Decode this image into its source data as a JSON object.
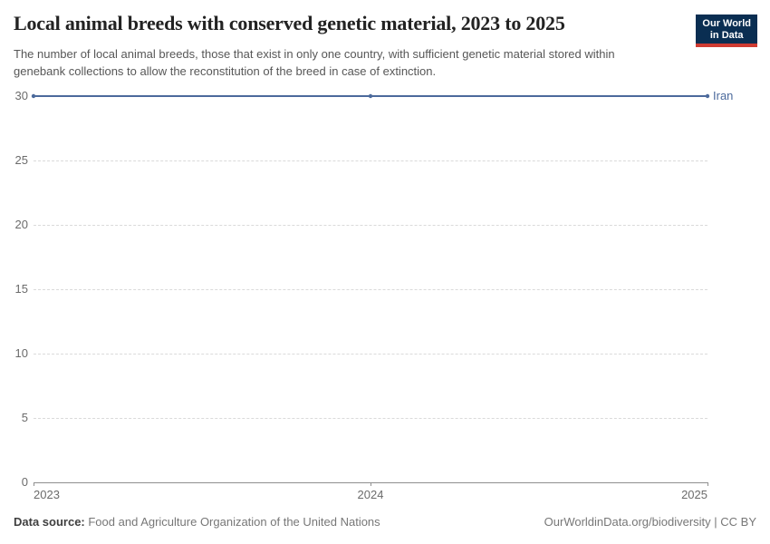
{
  "header": {
    "title": "Local animal breeds with conserved genetic material, 2023 to 2025",
    "subtitle": "The number of local animal breeds, those that exist in only one country, with sufficient genetic material stored within genebank collections to allow the reconstitution of the breed in case of extinction.",
    "logo": {
      "line1": "Our World",
      "line2": "in Data",
      "bg_color": "#0a2e52",
      "accent_color": "#cf3b32"
    }
  },
  "chart_data": {
    "type": "line",
    "title": "Local animal breeds with conserved genetic material, 2023 to 2025",
    "x": [
      2023,
      2024,
      2025
    ],
    "series": [
      {
        "name": "Iran",
        "values": [
          30,
          30,
          30
        ],
        "color": "#4c6a9c"
      }
    ],
    "xlabel": "",
    "ylabel": "",
    "ylim": [
      0,
      30
    ],
    "yticks": [
      0,
      5,
      10,
      15,
      20,
      25,
      30
    ],
    "xticks": [
      2023,
      2024,
      2025
    ],
    "grid": "horizontal-dashed",
    "gridline_color": "#dadada",
    "axis_color": "#8f8f8f",
    "tick_label_color": "#6b6b6b",
    "legend_position": "end-of-line"
  },
  "footer": {
    "data_source_label": "Data source:",
    "data_source_value": " Food and Agriculture Organization of the United Nations",
    "credit": "OurWorldinData.org/biodiversity | CC BY"
  }
}
